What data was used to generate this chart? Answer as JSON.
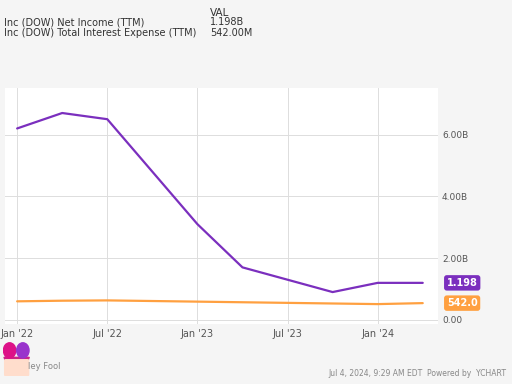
{
  "legend_items": [
    {
      "label": "Inc (DOW) Net Income (TTM)",
      "val": "1.198B",
      "color": "#7B2FBE"
    },
    {
      "label": "Inc (DOW) Total Interest Expense (TTM)",
      "val": "542.00M",
      "color": "#FFA040"
    }
  ],
  "legend_header": "VAL",
  "net_income_x": [
    0,
    3,
    6,
    9,
    12,
    15,
    18,
    21,
    24,
    27
  ],
  "net_income_y": [
    6.2,
    6.7,
    6.5,
    4.8,
    3.1,
    1.7,
    1.3,
    0.9,
    1.198,
    1.198
  ],
  "interest_x": [
    0,
    3,
    6,
    9,
    12,
    15,
    18,
    21,
    24,
    27
  ],
  "interest_y": [
    0.6,
    0.62,
    0.63,
    0.61,
    0.59,
    0.57,
    0.55,
    0.53,
    0.51,
    0.542
  ],
  "net_income_color": "#7B2FBE",
  "interest_color": "#FFA040",
  "ytick_vals": [
    0.0,
    2.0,
    4.0,
    6.0
  ],
  "ytick_labels": [
    "0.00",
    "2.00B",
    "4.00B",
    "6.00B"
  ],
  "xtick_positions": [
    0,
    6,
    12,
    18,
    24
  ],
  "xtick_labels": [
    "Jan '22",
    "Jul '22",
    "Jan '23",
    "Jul '23",
    "Jan '24"
  ],
  "ymin": -0.15,
  "ymax": 7.5,
  "bg_color": "#F5F5F5",
  "plot_bg_color": "#FFFFFF",
  "grid_color": "#DDDDDD",
  "label_box_purple": "1.198",
  "label_box_orange": "542.0",
  "footer_text": "Jul 4, 2024, 9:29 AM EDT  Powered by  YCHART",
  "footer_motley": "ley Fool"
}
